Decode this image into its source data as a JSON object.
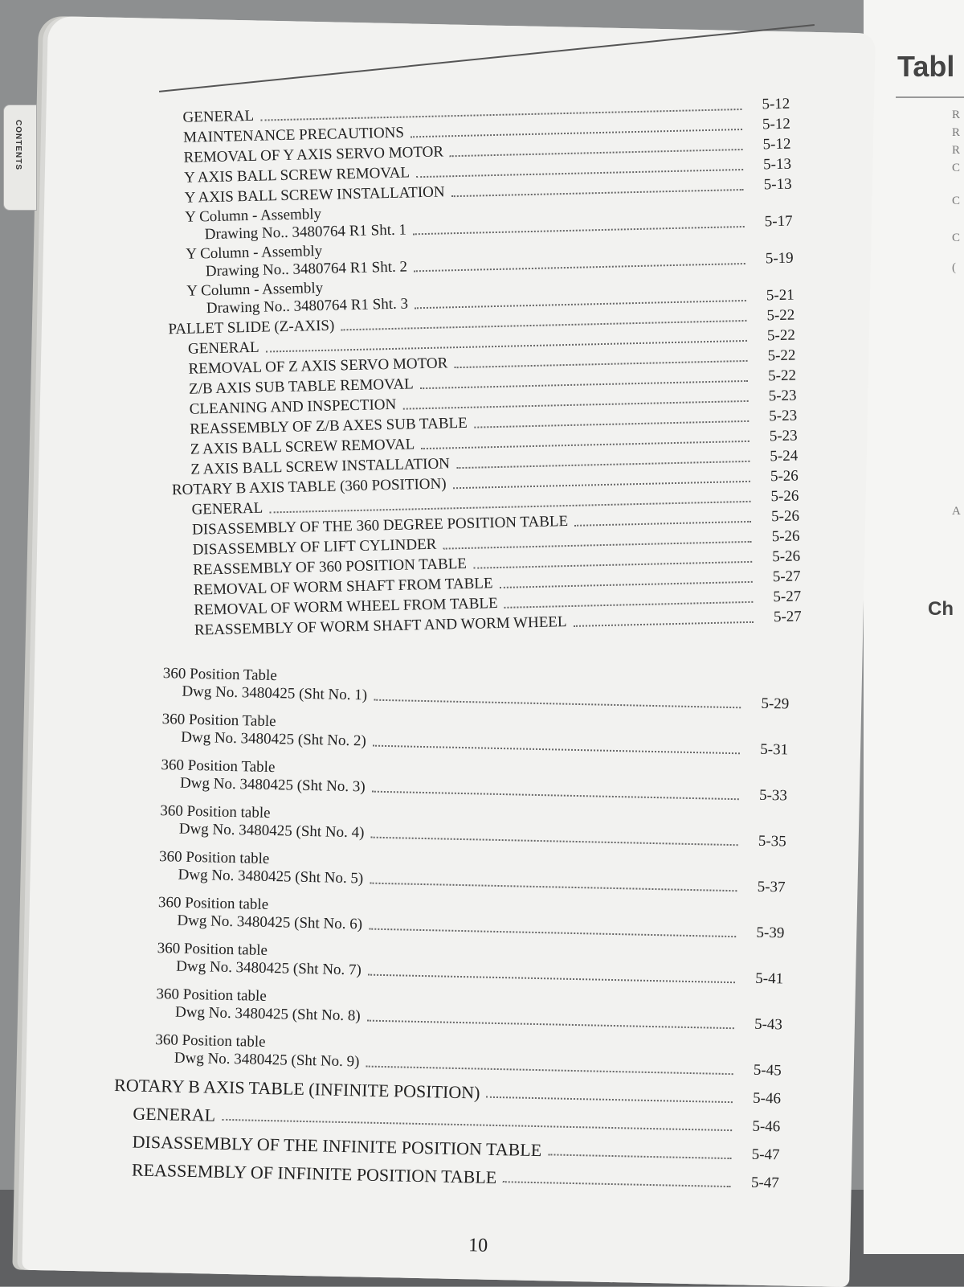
{
  "tab": {
    "label": "CONTENTS"
  },
  "right_page": {
    "title": "Tabl",
    "letters": [
      "R",
      "R",
      "R",
      "C",
      "C",
      "C",
      "(",
      "A"
    ],
    "chapter": "Ch"
  },
  "toc_top": [
    {
      "label": "GENERAL",
      "page": "5-12",
      "level": 1
    },
    {
      "label": "MAINTENANCE PRECAUTIONS",
      "page": "5-12",
      "level": 1
    },
    {
      "label": "REMOVAL OF Y AXIS SERVO MOTOR",
      "page": "5-12",
      "level": 1
    },
    {
      "label": "Y AXIS BALL SCREW REMOVAL",
      "page": "5-13",
      "level": 1
    },
    {
      "label": "Y AXIS BALL SCREW INSTALLATION",
      "page": "5-13",
      "level": 1
    },
    {
      "label": "Y Column - Assembly",
      "sub": "Drawing No.. 3480764 R1 Sht. 1",
      "page": "5-17",
      "level": 1
    },
    {
      "label": "Y Column - Assembly",
      "sub": "Drawing No.. 3480764 R1 Sht. 2",
      "page": "5-19",
      "level": 1
    },
    {
      "label": "Y Column - Assembly",
      "sub": "Drawing No.. 3480764 R1 Sht. 3",
      "page": "5-21",
      "level": 1
    },
    {
      "label": "PALLET SLIDE  (Z-AXIS)",
      "page": "5-22",
      "level": 0
    },
    {
      "label": "GENERAL",
      "page": "5-22",
      "level": 1
    },
    {
      "label": "REMOVAL OF Z AXIS SERVO MOTOR",
      "page": "5-22",
      "level": 1
    },
    {
      "label": "Z/B AXIS SUB TABLE REMOVAL",
      "page": "5-22",
      "level": 1
    },
    {
      "label": "CLEANING AND INSPECTION",
      "page": "5-23",
      "level": 1
    },
    {
      "label": "REASSEMBLY OF Z/B AXES SUB TABLE",
      "page": "5-23",
      "level": 1
    },
    {
      "label": "Z AXIS BALL SCREW REMOVAL",
      "page": "5-23",
      "level": 1
    },
    {
      "label": "Z AXIS BALL SCREW INSTALLATION",
      "page": "5-24",
      "level": 1
    },
    {
      "label": "ROTARY B AXIS TABLE (360 POSITION)",
      "page": "5-26",
      "level": 0
    },
    {
      "label": "GENERAL",
      "page": "5-26",
      "level": 1
    },
    {
      "label": "DISASSEMBLY OF THE 360 DEGREE POSITION TABLE",
      "page": "5-26",
      "level": 1
    },
    {
      "label": "DISASSEMBLY OF LIFT CYLINDER",
      "page": "5-26",
      "level": 1
    },
    {
      "label": "REASSEMBLY OF 360 POSITION TABLE",
      "page": "5-26",
      "level": 1
    },
    {
      "label": "REMOVAL OF WORM SHAFT FROM TABLE",
      "page": "5-27",
      "level": 1
    },
    {
      "label": "REMOVAL OF WORM WHEEL FROM TABLE",
      "page": "5-27",
      "level": 1
    },
    {
      "label": "REASSEMBLY OF WORM SHAFT AND WORM WHEEL",
      "page": "5-27",
      "level": 1
    }
  ],
  "toc_drawings": [
    {
      "label": "360 Position Table",
      "sub": "Dwg No. 3480425 (Sht No. 1)",
      "page": "5-29"
    },
    {
      "label": "360 Position Table",
      "sub": "Dwg No. 3480425 (Sht No. 2)",
      "page": "5-31"
    },
    {
      "label": "360 Position Table",
      "sub": "Dwg No. 3480425 (Sht No. 3)",
      "page": "5-33"
    },
    {
      "label": "360 Position table",
      "sub": "Dwg No. 3480425 (Sht No. 4)",
      "page": "5-35"
    },
    {
      "label": "360 Position table",
      "sub": "Dwg No. 3480425 (Sht No. 5)",
      "page": "5-37"
    },
    {
      "label": "360 Position table",
      "sub": "Dwg No. 3480425 (Sht No. 6)",
      "page": "5-39"
    },
    {
      "label": "360 Position table",
      "sub": "Dwg No. 3480425 (Sht No. 7)",
      "page": "5-41"
    },
    {
      "label": "360 Position table",
      "sub": "Dwg No. 3480425 (Sht No. 8)",
      "page": "5-43"
    },
    {
      "label": "360 Position table",
      "sub": "Dwg No. 3480425 (Sht No. 9)",
      "page": "5-45"
    }
  ],
  "toc_bottom": [
    {
      "label": "ROTARY B AXIS TABLE (INFINITE POSITION)",
      "page": "5-46",
      "level": 0
    },
    {
      "label": "GENERAL",
      "page": "5-46",
      "level": 1
    },
    {
      "label": "DISASSEMBLY OF THE INFINITE POSITION TABLE",
      "page": "5-47",
      "level": 1
    },
    {
      "label": "REASSEMBLY OF INFINITE POSITION TABLE",
      "page": "5-47",
      "level": 1
    }
  ],
  "page_number": "10"
}
